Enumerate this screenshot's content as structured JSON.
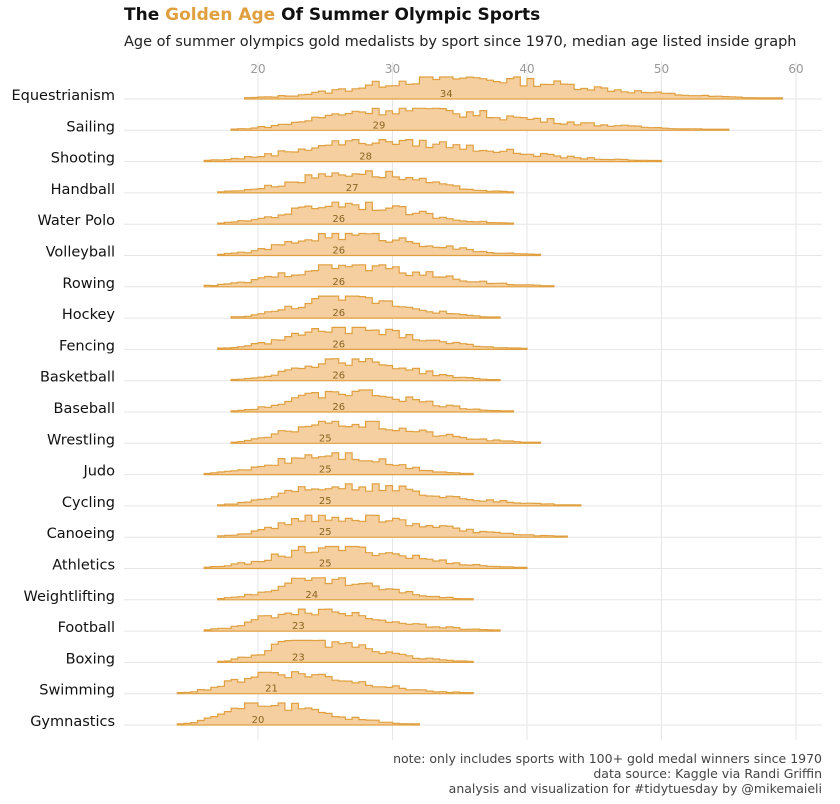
{
  "header": {
    "title_pre": "The ",
    "title_highlight": "Golden Age",
    "title_post": " Of Summer Olympic Sports",
    "subtitle": "Age of summer olympics gold medalists by sport since 1970, median age listed inside graph"
  },
  "caption": {
    "note": "note: only includes sports with 100+ gold medal winners since 1970",
    "source": "data source: Kaggle via Randi Griffin",
    "credit": "analysis and visualization for #tidytuesday by @mikemaieli"
  },
  "colors": {
    "fill": "#F5CFA0",
    "line": "#E0A040",
    "grid": "#E6E6E6",
    "highlight": "#E0A040"
  },
  "chart_data": {
    "type": "ridgeline-histogram",
    "xlim": [
      13,
      62
    ],
    "xticks": [
      20,
      30,
      40,
      50,
      60
    ],
    "grid": true,
    "sports": [
      {
        "name": "Equestrianism",
        "median": 34,
        "min": 19,
        "max": 59
      },
      {
        "name": "Sailing",
        "median": 29,
        "min": 18,
        "max": 55
      },
      {
        "name": "Shooting",
        "median": 28,
        "min": 16,
        "max": 50
      },
      {
        "name": "Handball",
        "median": 27,
        "min": 17,
        "max": 39
      },
      {
        "name": "Water Polo",
        "median": 26,
        "min": 17,
        "max": 39
      },
      {
        "name": "Volleyball",
        "median": 26,
        "min": 17,
        "max": 41
      },
      {
        "name": "Rowing",
        "median": 26,
        "min": 16,
        "max": 42
      },
      {
        "name": "Hockey",
        "median": 26,
        "min": 18,
        "max": 38
      },
      {
        "name": "Fencing",
        "median": 26,
        "min": 17,
        "max": 40
      },
      {
        "name": "Basketball",
        "median": 26,
        "min": 18,
        "max": 38
      },
      {
        "name": "Baseball",
        "median": 26,
        "min": 18,
        "max": 39
      },
      {
        "name": "Wrestling",
        "median": 25,
        "min": 18,
        "max": 41
      },
      {
        "name": "Judo",
        "median": 25,
        "min": 16,
        "max": 36
      },
      {
        "name": "Cycling",
        "median": 25,
        "min": 17,
        "max": 44
      },
      {
        "name": "Canoeing",
        "median": 25,
        "min": 17,
        "max": 43
      },
      {
        "name": "Athletics",
        "median": 25,
        "min": 16,
        "max": 40
      },
      {
        "name": "Weightlifting",
        "median": 24,
        "min": 17,
        "max": 36
      },
      {
        "name": "Football",
        "median": 23,
        "min": 16,
        "max": 38
      },
      {
        "name": "Boxing",
        "median": 23,
        "min": 17,
        "max": 36
      },
      {
        "name": "Swimming",
        "median": 21,
        "min": 14,
        "max": 36
      },
      {
        "name": "Gymnastics",
        "median": 20,
        "min": 14,
        "max": 32
      }
    ]
  }
}
